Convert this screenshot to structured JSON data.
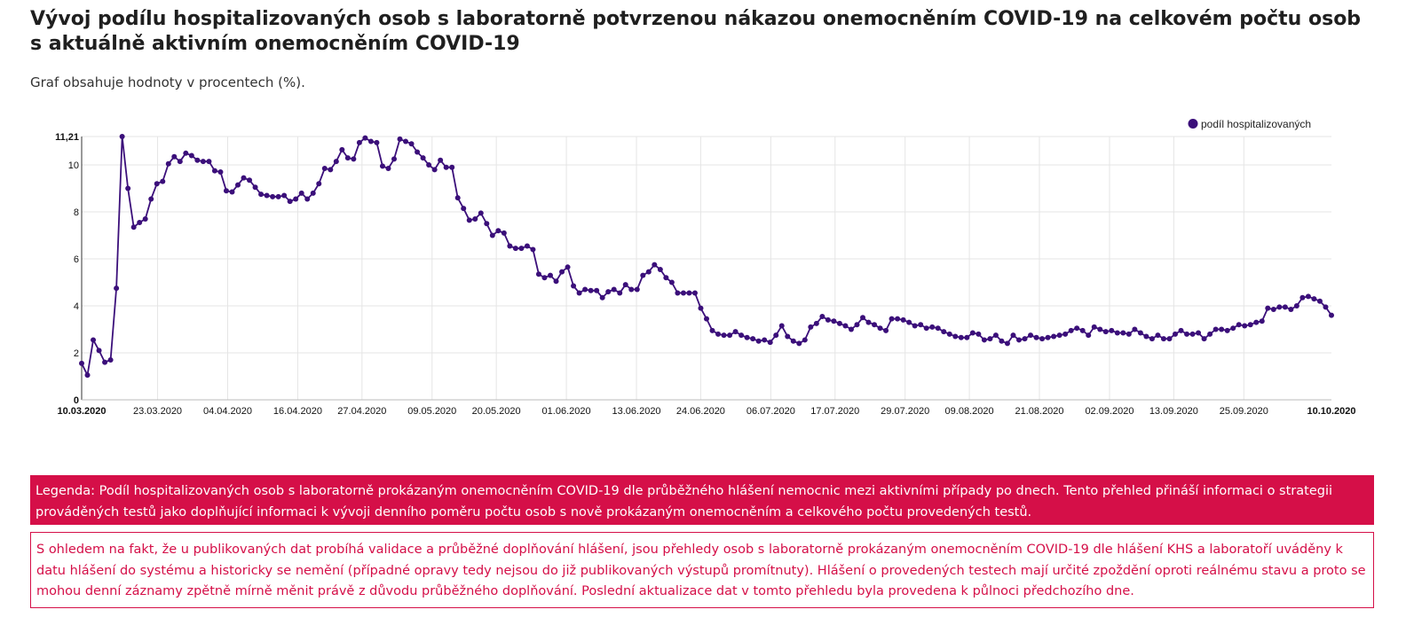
{
  "header": {
    "title": "Vývoj podílu hospitalizovaných osob s laboratorně potvrzenou nákazou onemocněním COVID-19 na celkovém počtu osob s aktuálně aktivním onemocněním COVID-19",
    "subtitle": "Graf obsahuje hodnoty v procentech (%)."
  },
  "legend_box": {
    "text": "Legenda: Podíl hospitalizovaných osob s laboratorně prokázaným onemocněním COVID-19 dle průběžného hlášení nemocnic mezi aktivními případy po dnech. Tento přehled přináší informaci o strategii prováděných testů jako doplňující informaci k vývoji denního poměru počtu osob s nově prokázaným onemocněním a celkového počtu provedených testů."
  },
  "note_box": {
    "text": "S ohledem na fakt, že u publikovaných dat probíhá validace a průběžné doplňování hlášení, jsou přehledy osob s laboratorně prokázaným onemocněním COVID-19 dle hlášení KHS a laboratoří uváděny k datu hlášení do systému a historicky se nemění (případné opravy tedy nejsou do již publikovaných výstupů promítnuty). Hlášení o provedených testech mají určité zpoždění oproti reálnému stavu a proto se mohou denní záznamy zpětně mírně měnit právě z důvodu průběžného doplňování. Poslední aktualizace dat v tomto přehledu byla provedena k půlnoci předchozího dne."
  },
  "colors": {
    "series": "#3b0f7a",
    "accent": "#d50f48",
    "grid": "#e5e5e5"
  },
  "chart_data": {
    "type": "line",
    "legend_position": "top-right",
    "grid": true,
    "x_start": "10.03.2020",
    "x_end": "10.10.2020",
    "ylim": [
      0,
      11.21
    ],
    "y_ticks": [
      "0",
      "2",
      "4",
      "6",
      "8",
      "10",
      "11,21"
    ],
    "x_ticks": [
      "10.03.2020",
      "23.03.2020",
      "04.04.2020",
      "16.04.2020",
      "27.04.2020",
      "09.05.2020",
      "20.05.2020",
      "01.06.2020",
      "13.06.2020",
      "24.06.2020",
      "06.07.2020",
      "17.07.2020",
      "29.07.2020",
      "09.08.2020",
      "21.08.2020",
      "02.09.2020",
      "13.09.2020",
      "25.09.2020",
      "10.10.2020"
    ],
    "series": [
      {
        "name": "podíl hospitalizovaných",
        "values": [
          1.55,
          1.05,
          2.55,
          2.1,
          1.6,
          1.7,
          4.75,
          11.21,
          9.0,
          7.35,
          7.55,
          7.7,
          8.55,
          9.2,
          9.3,
          10.05,
          10.35,
          10.15,
          10.5,
          10.4,
          10.2,
          10.15,
          10.15,
          9.75,
          9.7,
          8.9,
          8.85,
          9.15,
          9.45,
          9.35,
          9.05,
          8.75,
          8.7,
          8.65,
          8.65,
          8.7,
          8.45,
          8.55,
          8.8,
          8.55,
          8.8,
          9.2,
          9.85,
          9.8,
          10.15,
          10.65,
          10.3,
          10.25,
          10.95,
          11.15,
          11.0,
          10.95,
          9.95,
          9.85,
          10.25,
          11.1,
          11.0,
          10.9,
          10.55,
          10.3,
          10.0,
          9.8,
          10.2,
          9.9,
          9.9,
          8.6,
          8.15,
          7.65,
          7.7,
          7.95,
          7.5,
          7.0,
          7.2,
          7.1,
          6.55,
          6.45,
          6.45,
          6.55,
          6.4,
          5.35,
          5.2,
          5.3,
          5.05,
          5.45,
          5.65,
          4.85,
          4.55,
          4.7,
          4.65,
          4.65,
          4.35,
          4.6,
          4.7,
          4.55,
          4.9,
          4.7,
          4.7,
          5.3,
          5.45,
          5.75,
          5.55,
          5.2,
          5.0,
          4.55,
          4.55,
          4.55,
          4.55,
          3.9,
          3.45,
          2.95,
          2.8,
          2.75,
          2.75,
          2.9,
          2.75,
          2.65,
          2.6,
          2.5,
          2.55,
          2.45,
          2.75,
          3.15,
          2.7,
          2.5,
          2.4,
          2.55,
          3.1,
          3.25,
          3.55,
          3.4,
          3.35,
          3.25,
          3.15,
          3.0,
          3.2,
          3.5,
          3.3,
          3.2,
          3.05,
          2.95,
          3.45,
          3.45,
          3.4,
          3.3,
          3.15,
          3.2,
          3.05,
          3.1,
          3.05,
          2.9,
          2.8,
          2.7,
          2.65,
          2.65,
          2.85,
          2.8,
          2.55,
          2.6,
          2.75,
          2.5,
          2.4,
          2.75,
          2.55,
          2.6,
          2.75,
          2.65,
          2.6,
          2.65,
          2.7,
          2.75,
          2.8,
          2.95,
          3.05,
          2.95,
          2.75,
          3.1,
          3.0,
          2.9,
          2.95,
          2.85,
          2.85,
          2.8,
          3.0,
          2.85,
          2.7,
          2.6,
          2.75,
          2.6,
          2.6,
          2.8,
          2.95,
          2.8,
          2.8,
          2.85,
          2.6,
          2.8,
          3.0,
          3.0,
          2.95,
          3.05,
          3.2,
          3.15,
          3.2,
          3.3,
          3.35,
          3.9,
          3.85,
          3.95,
          3.95,
          3.85,
          4.0,
          4.35,
          4.4,
          4.3,
          4.2,
          3.95,
          3.6
        ]
      }
    ]
  }
}
